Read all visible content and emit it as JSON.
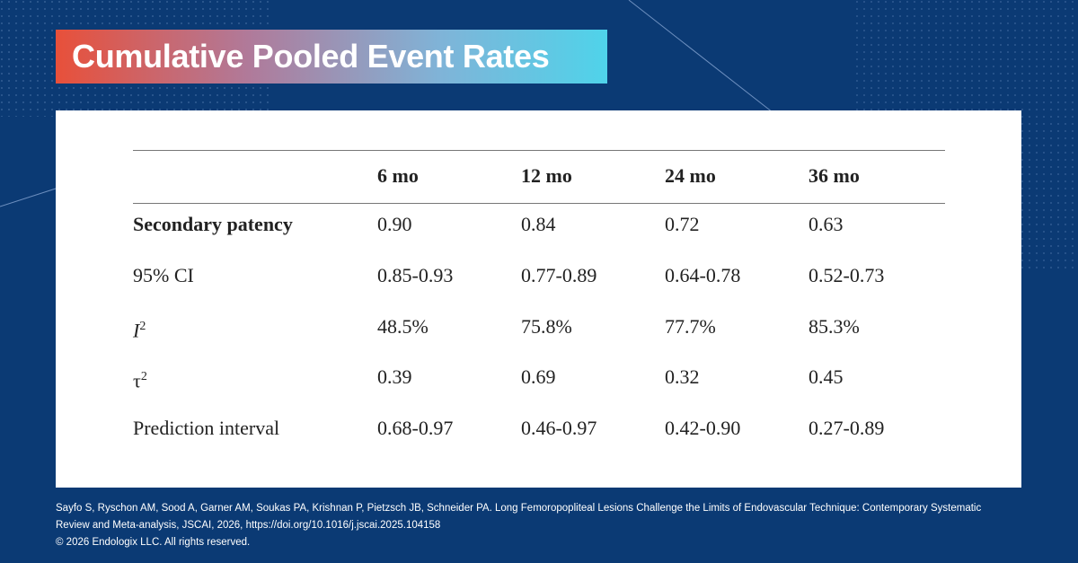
{
  "header": {
    "title": "Cumulative Pooled Event Rates"
  },
  "table": {
    "columns": [
      "6 mo",
      "12 mo",
      "24 mo",
      "36 mo"
    ],
    "rows": [
      {
        "label": "Secondary patency",
        "values": [
          "0.90",
          "0.84",
          "0.72",
          "0.63"
        ]
      },
      {
        "label": "95% CI",
        "values": [
          "0.85-0.93",
          "0.77-0.89",
          "0.64-0.78",
          "0.52-0.73"
        ]
      },
      {
        "label": "I",
        "label_sup": "2",
        "values": [
          "48.5%",
          "75.8%",
          "77.7%",
          "85.3%"
        ]
      },
      {
        "label": "τ",
        "label_sup": "2",
        "values": [
          "0.39",
          "0.69",
          "0.32",
          "0.45"
        ]
      },
      {
        "label": "Prediction interval",
        "values": [
          "0.68-0.97",
          "0.46-0.97",
          "0.42-0.90",
          "0.27-0.89"
        ]
      }
    ]
  },
  "footer": {
    "citation": "Sayfo S, Ryschon AM, Sood A, Garner AM, Soukas PA, Krishnan P, Pietzsch JB, Schneider PA. Long Femoropopliteal Lesions Challenge the Limits of Endovascular Technique: Contemporary Systematic Review and Meta-analysis, JSCAI, 2026, https://doi.org/10.1016/j.jscai.2025.104158",
    "copyright": "© 2026 Endologix LLC. All rights reserved."
  }
}
